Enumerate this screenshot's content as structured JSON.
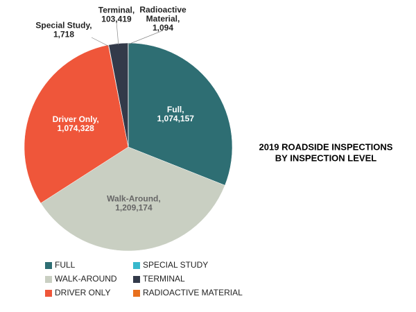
{
  "chart_data": {
    "type": "pie",
    "title": [
      "2019 ROADSIDE INSPECTIONS",
      "BY INSPECTION LEVEL"
    ],
    "categories": [
      "FULL",
      "WALK-AROUND",
      "DRIVER ONLY",
      "SPECIAL STUDY",
      "TERMINAL",
      "RADIOACTIVE MATERIAL"
    ],
    "slice_labels": [
      [
        "Full,"
      ],
      [
        "Walk-Around,"
      ],
      [
        "Driver Only,"
      ],
      [
        "Special Study,"
      ],
      [
        "Terminal,"
      ],
      [
        "Radioactive",
        "Material,"
      ]
    ],
    "values": [
      1074157,
      1209174,
      1074328,
      1718,
      103419,
      1094
    ],
    "value_labels": [
      "1,074,157",
      "1,209,174",
      "1,074,328",
      "1,718",
      "103,419",
      "1,094"
    ],
    "colors": [
      "#2e6e73",
      "#c9cfc2",
      "#ef563a",
      "#38b8cc",
      "#333a4a",
      "#e8701e"
    ]
  }
}
